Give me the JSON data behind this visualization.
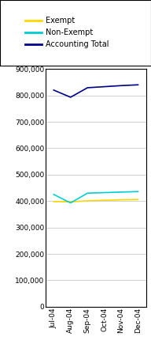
{
  "months": [
    "Jul-04",
    "Aug-04",
    "Sep-04",
    "Oct-04",
    "Nov-04",
    "Dec-04"
  ],
  "exempt": [
    398000,
    397000,
    401000,
    403000,
    405000,
    406000
  ],
  "non_exempt": [
    425000,
    393000,
    430000,
    432000,
    434000,
    436000
  ],
  "accounting_total": [
    820000,
    793000,
    829000,
    833000,
    837000,
    840000
  ],
  "exempt_color": "#FFD700",
  "non_exempt_color": "#00CED1",
  "accounting_color": "#00008B",
  "ylim": [
    0,
    900000
  ],
  "yticks": [
    0,
    100000,
    200000,
    300000,
    400000,
    500000,
    600000,
    700000,
    800000,
    900000
  ],
  "legend_labels": [
    "Exempt",
    "Non-Exempt",
    "Accounting Total"
  ],
  "bg_color": "#FFFFFF",
  "plot_bg_color": "#FFFFFF",
  "grid_color": "#C0C0C0",
  "legend_fontsize": 7.0,
  "tick_fontsize": 6.5,
  "linewidth": 1.2
}
